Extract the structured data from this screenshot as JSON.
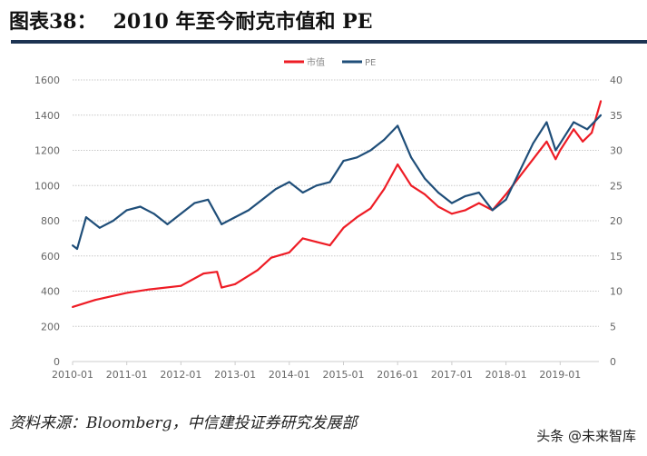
{
  "figure_label": "图表38：",
  "title": "2010 年至今耐克市值和 PE",
  "source": "资料来源：Bloomberg，中信建投证券研究发展部",
  "watermark": "头条 @未来智库",
  "chart_data": {
    "type": "line",
    "title": "",
    "legend_position": "top",
    "grid": "horizontal dotted",
    "x_ticks": [
      "2010-01",
      "2011-01",
      "2012-01",
      "2013-01",
      "2014-01",
      "2015-01",
      "2016-01",
      "2017-01",
      "2018-01",
      "2019-01"
    ],
    "y_left": {
      "lim": [
        0,
        1600
      ],
      "ticks": [
        0,
        200,
        400,
        600,
        800,
        1000,
        1200,
        1400,
        1600
      ]
    },
    "y_right": {
      "lim": [
        0,
        40
      ],
      "ticks": [
        0,
        5,
        10,
        15,
        20,
        25,
        30,
        35,
        40
      ]
    },
    "series": [
      {
        "name": "市值",
        "axis": "left",
        "color": "#ee1c25",
        "x": [
          "2010-01",
          "2010-06",
          "2011-01",
          "2011-06",
          "2012-01",
          "2012-06",
          "2012-09",
          "2012-10",
          "2013-01",
          "2013-06",
          "2013-09",
          "2014-01",
          "2014-04",
          "2014-07",
          "2014-10",
          "2015-01",
          "2015-04",
          "2015-07",
          "2015-10",
          "2016-01",
          "2016-04",
          "2016-07",
          "2016-10",
          "2017-01",
          "2017-04",
          "2017-07",
          "2017-10",
          "2018-01",
          "2018-04",
          "2018-07",
          "2018-10",
          "2018-12",
          "2019-01",
          "2019-04",
          "2019-06",
          "2019-08",
          "2019-10"
        ],
        "values": [
          310,
          350,
          390,
          410,
          430,
          500,
          510,
          420,
          440,
          520,
          590,
          620,
          700,
          680,
          660,
          760,
          820,
          870,
          980,
          1120,
          1000,
          950,
          880,
          840,
          860,
          900,
          860,
          950,
          1050,
          1150,
          1250,
          1150,
          1200,
          1320,
          1250,
          1300,
          1480
        ]
      },
      {
        "name": "PE",
        "axis": "right",
        "color": "#1f4e79",
        "x": [
          "2010-01",
          "2010-02",
          "2010-04",
          "2010-07",
          "2010-10",
          "2011-01",
          "2011-04",
          "2011-07",
          "2011-10",
          "2012-01",
          "2012-04",
          "2012-07",
          "2012-10",
          "2013-01",
          "2013-04",
          "2013-07",
          "2013-10",
          "2014-01",
          "2014-04",
          "2014-07",
          "2014-10",
          "2015-01",
          "2015-04",
          "2015-07",
          "2015-10",
          "2016-01",
          "2016-04",
          "2016-07",
          "2016-10",
          "2017-01",
          "2017-04",
          "2017-07",
          "2017-10",
          "2018-01",
          "2018-04",
          "2018-07",
          "2018-10",
          "2018-12",
          "2019-01",
          "2019-04",
          "2019-07",
          "2019-10"
        ],
        "values": [
          16.5,
          16,
          20.5,
          19,
          20,
          21.5,
          22,
          21,
          19.5,
          21,
          22.5,
          23,
          19.5,
          20.5,
          21.5,
          23,
          24.5,
          25.5,
          24,
          25,
          25.5,
          28.5,
          29,
          30,
          31.5,
          33.5,
          29,
          26,
          24,
          22.5,
          23.5,
          24,
          21.5,
          23,
          27,
          31,
          34,
          30,
          31,
          34,
          33,
          35
        ]
      }
    ]
  }
}
